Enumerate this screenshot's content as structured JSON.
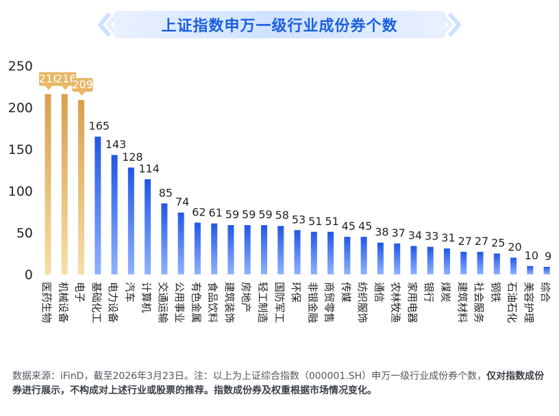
{
  "title": "上证指数申万一级行业成份券个数",
  "colors": {
    "title_text": "#1a5fe0",
    "bar_top_start": "#f5dfa6",
    "bar_top_end": "#d99f4e",
    "bar_start": "#8fb2ff",
    "bar_end": "#2157e6",
    "top_label_bg": "#e7b766"
  },
  "chart_data": {
    "type": "bar",
    "title": "上证指数申万一级行业成份券个数",
    "xlabel": "",
    "ylabel": "",
    "ylim": [
      0,
      250
    ],
    "yticks": [
      0,
      50,
      100,
      150,
      200,
      250
    ],
    "grid": false,
    "highlight_top_n": 3,
    "categories": [
      "医药生物",
      "机械设备",
      "电子",
      "基础化工",
      "电力设备",
      "汽车",
      "计算机",
      "交通运输",
      "公用事业",
      "有色金属",
      "食品饮料",
      "建筑装饰",
      "房地产",
      "轻工制造",
      "国防军工",
      "环保",
      "非银金融",
      "商贸零售",
      "传媒",
      "纺织服饰",
      "通信",
      "农林牧渔",
      "家用电器",
      "银行",
      "煤炭",
      "建筑材料",
      "社会服务",
      "钢铁",
      "石油石化",
      "美容护理",
      "综合"
    ],
    "values": [
      216,
      216,
      209,
      165,
      143,
      128,
      114,
      85,
      74,
      62,
      61,
      59,
      59,
      59,
      58,
      53,
      51,
      51,
      45,
      45,
      38,
      37,
      34,
      33,
      31,
      27,
      27,
      25,
      20,
      10,
      9
    ]
  },
  "footnote": {
    "normal": "数据来源：iFinD，截至2026年3月23日。注：以上为上证综合指数（000001.SH）申万一级行业成份券个数，",
    "bold": "仅对指数成份券进行展示，不构成对上述行业或股票的推荐。指数成份券及权重根据市场情况变化。"
  }
}
